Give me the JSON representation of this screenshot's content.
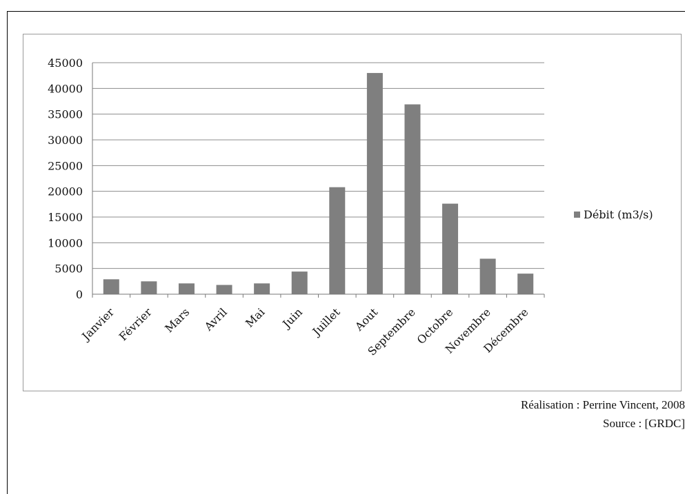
{
  "chart_data": {
    "type": "bar",
    "categories": [
      "Janvier",
      "Février",
      "Mars",
      "Avril",
      "Mai",
      "Juin",
      "Juillet",
      "Aout",
      "Septembre",
      "Octobre",
      "Novembre",
      "Décembre"
    ],
    "series": [
      {
        "name": "Débit (m3/s)",
        "values": [
          2900,
          2500,
          2100,
          1800,
          2100,
          4400,
          20800,
          43000,
          36900,
          17600,
          6900,
          4000
        ]
      }
    ],
    "ylim": [
      0,
      45000
    ],
    "yticks": [
      0,
      5000,
      10000,
      15000,
      20000,
      25000,
      30000,
      35000,
      40000,
      45000
    ],
    "grid": true,
    "legend_position": "right",
    "bar_color": "#7f7f7f"
  },
  "credits": {
    "realisation": "Réalisation : Perrine Vincent, 2008",
    "source": "Source : [GRDC]"
  }
}
